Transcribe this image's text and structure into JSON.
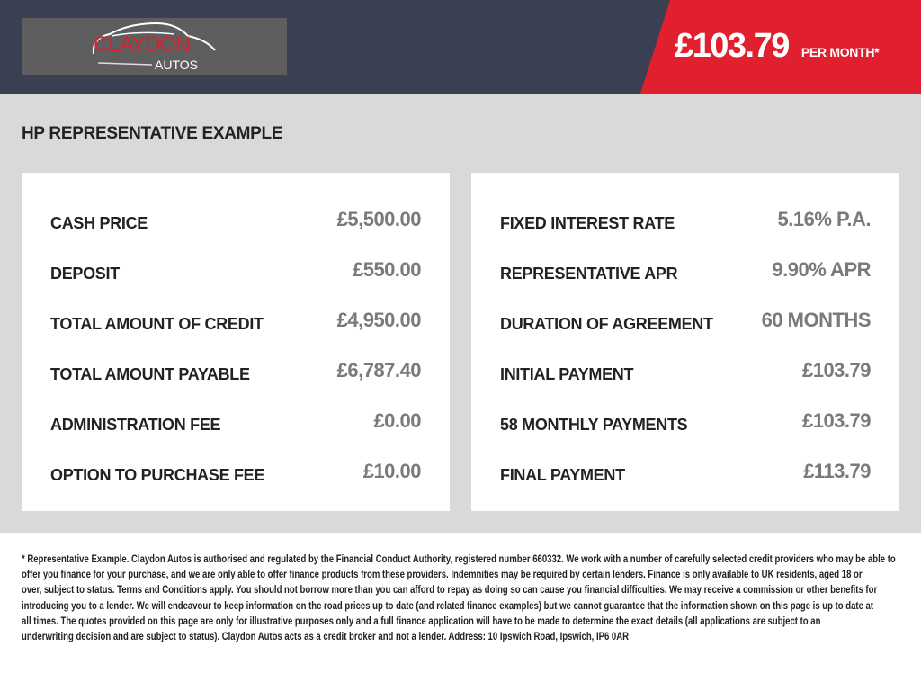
{
  "header": {
    "logo": {
      "line1": "CLAYDON",
      "line2": "AUTOS"
    },
    "price": "£103.79",
    "per_month": "PER MONTH*",
    "accent": "#e0202f",
    "bg": "#3a3f52"
  },
  "section_title": "HP REPRESENTATIVE EXAMPLE",
  "left": [
    {
      "label": "CASH PRICE",
      "value": "£5,500.00"
    },
    {
      "label": "DEPOSIT",
      "value": "£550.00"
    },
    {
      "label": "TOTAL AMOUNT OF CREDIT",
      "value": "£4,950.00"
    },
    {
      "label": "TOTAL AMOUNT PAYABLE",
      "value": "£6,787.40"
    },
    {
      "label": "ADMINISTRATION FEE",
      "value": "£0.00"
    },
    {
      "label": "OPTION TO PURCHASE FEE",
      "value": "£10.00"
    }
  ],
  "right": [
    {
      "label": "FIXED INTEREST RATE",
      "value": "5.16% P.A."
    },
    {
      "label": "REPRESENTATIVE APR",
      "value": "9.90% APR"
    },
    {
      "label": "DURATION OF AGREEMENT",
      "value": "60 MONTHS"
    },
    {
      "label": "INITIAL PAYMENT",
      "value": "£103.79"
    },
    {
      "label": "58 MONTHLY PAYMENTS",
      "value": "£103.79"
    },
    {
      "label": "FINAL PAYMENT",
      "value": "£113.79"
    }
  ],
  "footer": [
    "* Representative Example. Claydon Autos is authorised and regulated by the Financial Conduct Authority, registered number 660332. We work with a number of carefully selected credit providers who may be able to",
    "offer you finance for your purchase, and we are only able to offer finance products from these providers. Indemnities may be required by certain lenders. Finance is only available to UK residents, aged 18 or",
    "over, subject to status. Terms and Conditions apply. You should not borrow more than you can afford to repay as doing so can cause you financial difficulties. We may receive a commission or other benefits for",
    "introducing you to a lender. We will endeavour to keep information on the road prices up to date (and related finance examples) but we cannot guarantee that the information shown on this page is up to date at",
    "all times. The quotes provided on this page are only for illustrative purposes only and a full finance application will have to be made to determine the exact details (all applications are subject to an",
    "underwriting decision and are subject to status). Claydon Autos acts as a credit broker and not a lender. Address: 10 Ipswich Road, Ipswich, IP6 0AR"
  ]
}
